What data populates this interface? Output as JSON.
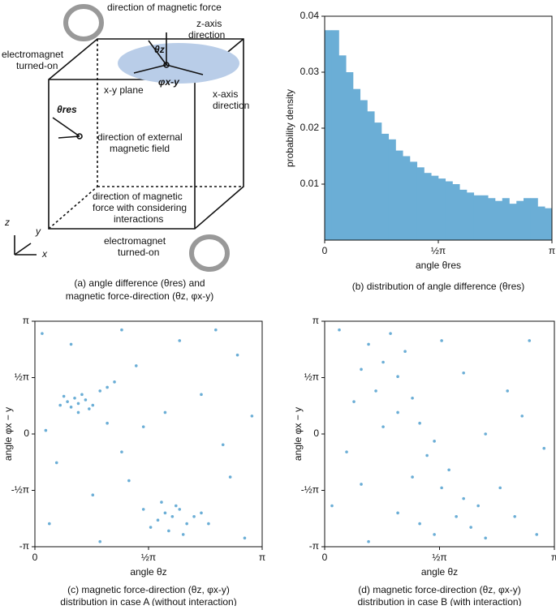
{
  "diagram": {
    "labels": [
      "direction of magnetic force",
      "z-axis",
      "direction",
      "θz",
      "φx-y",
      "x-axis",
      "direction",
      "x-y plane",
      "electromagnet",
      "turned-on",
      "θres",
      "direction of external",
      "magnetic field",
      "direction of magnetic",
      "force with considering",
      "interactions",
      "z",
      "y",
      "x",
      "electromagnet",
      "turned-on"
    ],
    "caption": [
      "(a) angle difference (θres) and",
      "magnetic force-direction (θz, φx-y)"
    ]
  },
  "chart_data": [
    {
      "type": "histogram",
      "color": "#6baed6",
      "caption": "(b) distribution of angle difference (θres)",
      "x_label": "angle θres",
      "y_label": "probability density",
      "bins": [
        0,
        0.0982,
        0.1963,
        0.2945,
        0.3927,
        0.4909,
        0.589,
        0.6872,
        0.7854,
        0.8836,
        0.9817,
        1.0799,
        1.1781,
        1.2763,
        1.3744,
        1.4726,
        1.5708,
        1.669,
        1.7671,
        1.8653,
        1.9635,
        2.0617,
        2.1598,
        2.258,
        2.3562,
        2.4544,
        2.5525,
        2.6507,
        2.7489,
        2.8471,
        2.9452,
        3.0434,
        3.1416
      ],
      "values": [
        0.0375,
        0.0375,
        0.033,
        0.03,
        0.027,
        0.025,
        0.023,
        0.021,
        0.019,
        0.018,
        0.016,
        0.015,
        0.014,
        0.013,
        0.012,
        0.0115,
        0.011,
        0.0105,
        0.01,
        0.009,
        0.0085,
        0.008,
        0.008,
        0.0075,
        0.007,
        0.0075,
        0.0065,
        0.007,
        0.0075,
        0.0075,
        0.006,
        0.0057
      ],
      "xlim": [
        0,
        3.1416
      ],
      "ylim": [
        0,
        0.04
      ],
      "xticks": [
        0,
        {
          "value": 1.5708,
          "label": "½π"
        },
        {
          "value": 3.1416,
          "label": "π"
        }
      ],
      "yticks": [
        0.01,
        0.02,
        0.03,
        0.04
      ]
    },
    {
      "type": "scatter",
      "color": "#6baed6",
      "caption": [
        "(c) magnetic force-direction (θz, φx-y)",
        "distribution in case A (without interaction)"
      ],
      "x_label": "angle θz",
      "y_label": "angle φx − y",
      "x": [
        0.45,
        0.55,
        0.6,
        0.7,
        0.5,
        0.65,
        0.8,
        0.4,
        0.75,
        0.9,
        1.0,
        1.1,
        0.35,
        0.6,
        1.8,
        1.9,
        2.0,
        1.7,
        2.1,
        1.95,
        2.2,
        1.6,
        2.3,
        1.85,
        2.05,
        1.5,
        2.4,
        1.75,
        0.1,
        0.5,
        1.2,
        2.0,
        2.8,
        3.0,
        2.6,
        1.5,
        1.2,
        0.3,
        0.2,
        0.8,
        2.9,
        2.7,
        1.4,
        0.9,
        2.3,
        1.8,
        0.15,
        2.5,
        1.0,
        1.3
      ],
      "values": [
        0.9,
        1.0,
        0.85,
        0.95,
        0.75,
        1.1,
        0.8,
        1.05,
        0.7,
        1.2,
        1.3,
        1.45,
        0.8,
        0.6,
        -2.2,
        -2.3,
        -2.1,
        -2.4,
        -2.5,
        -2.0,
        -2.3,
        -2.6,
        -2.2,
        -2.7,
        -2.8,
        -2.1,
        -2.5,
        -1.9,
        2.8,
        2.5,
        2.9,
        2.6,
        2.2,
        0.5,
        -0.3,
        0.2,
        -0.5,
        -0.8,
        -2.5,
        -1.7,
        -2.9,
        -1.2,
        1.9,
        -3.0,
        1.1,
        0.6,
        0.1,
        2.9,
        0.3,
        -1.3
      ],
      "xlim": [
        0,
        3.1416
      ],
      "ylim": [
        -3.1416,
        3.1416
      ],
      "xticks": [
        0,
        {
          "value": 1.5708,
          "label": "½π"
        },
        {
          "value": 3.1416,
          "label": "π"
        }
      ],
      "yticks": [
        {
          "value": -3.1416,
          "label": "-π"
        },
        {
          "value": -1.5708,
          "label": "-½π"
        },
        0,
        {
          "value": 1.5708,
          "label": "½π"
        },
        {
          "value": 3.1416,
          "label": "π"
        }
      ]
    },
    {
      "type": "scatter",
      "color": "#6baed6",
      "caption": [
        "(d) magnetic force-direction (θz, φx-y)",
        "distribution in case B (with interaction)"
      ],
      "x_label": "angle θz",
      "y_label": "angle φx − y",
      "x": [
        0.6,
        0.8,
        1.0,
        0.7,
        1.2,
        1.0,
        1.3,
        1.5,
        1.4,
        1.7,
        1.6,
        1.9,
        1.8,
        2.0,
        2.2,
        1.5,
        0.9,
        0.5,
        1.1,
        0.4,
        0.8,
        1.2,
        2.1,
        1.3,
        2.4,
        0.2,
        2.8,
        2.5,
        3.0,
        0.1,
        0.3,
        2.7,
        2.9,
        0.6,
        1.9,
        2.2,
        0.5,
        2.6,
        1.6,
        1.0
      ],
      "values": [
        2.5,
        2.0,
        1.6,
        1.2,
        1.0,
        0.6,
        0.3,
        -0.2,
        -0.6,
        -1.0,
        -1.5,
        -1.8,
        -2.3,
        -2.6,
        -2.9,
        -2.8,
        2.8,
        1.8,
        2.3,
        0.9,
        0.2,
        -1.2,
        -2.0,
        -2.5,
        -1.5,
        2.9,
        2.6,
        1.2,
        -0.4,
        -2.0,
        -0.5,
        0.5,
        -2.8,
        -3.0,
        1.7,
        0.0,
        -1.4,
        -2.3,
        2.6,
        -2.2
      ],
      "xlim": [
        0,
        3.1416
      ],
      "ylim": [
        -3.1416,
        3.1416
      ],
      "xticks": [
        0,
        {
          "value": 1.5708,
          "label": "½π"
        },
        {
          "value": 3.1416,
          "label": "π"
        }
      ],
      "yticks": [
        {
          "value": -3.1416,
          "label": "-π"
        },
        {
          "value": -1.5708,
          "label": "-½π"
        },
        0,
        {
          "value": 1.5708,
          "label": "½π"
        },
        {
          "value": 3.1416,
          "label": "π"
        }
      ]
    }
  ]
}
